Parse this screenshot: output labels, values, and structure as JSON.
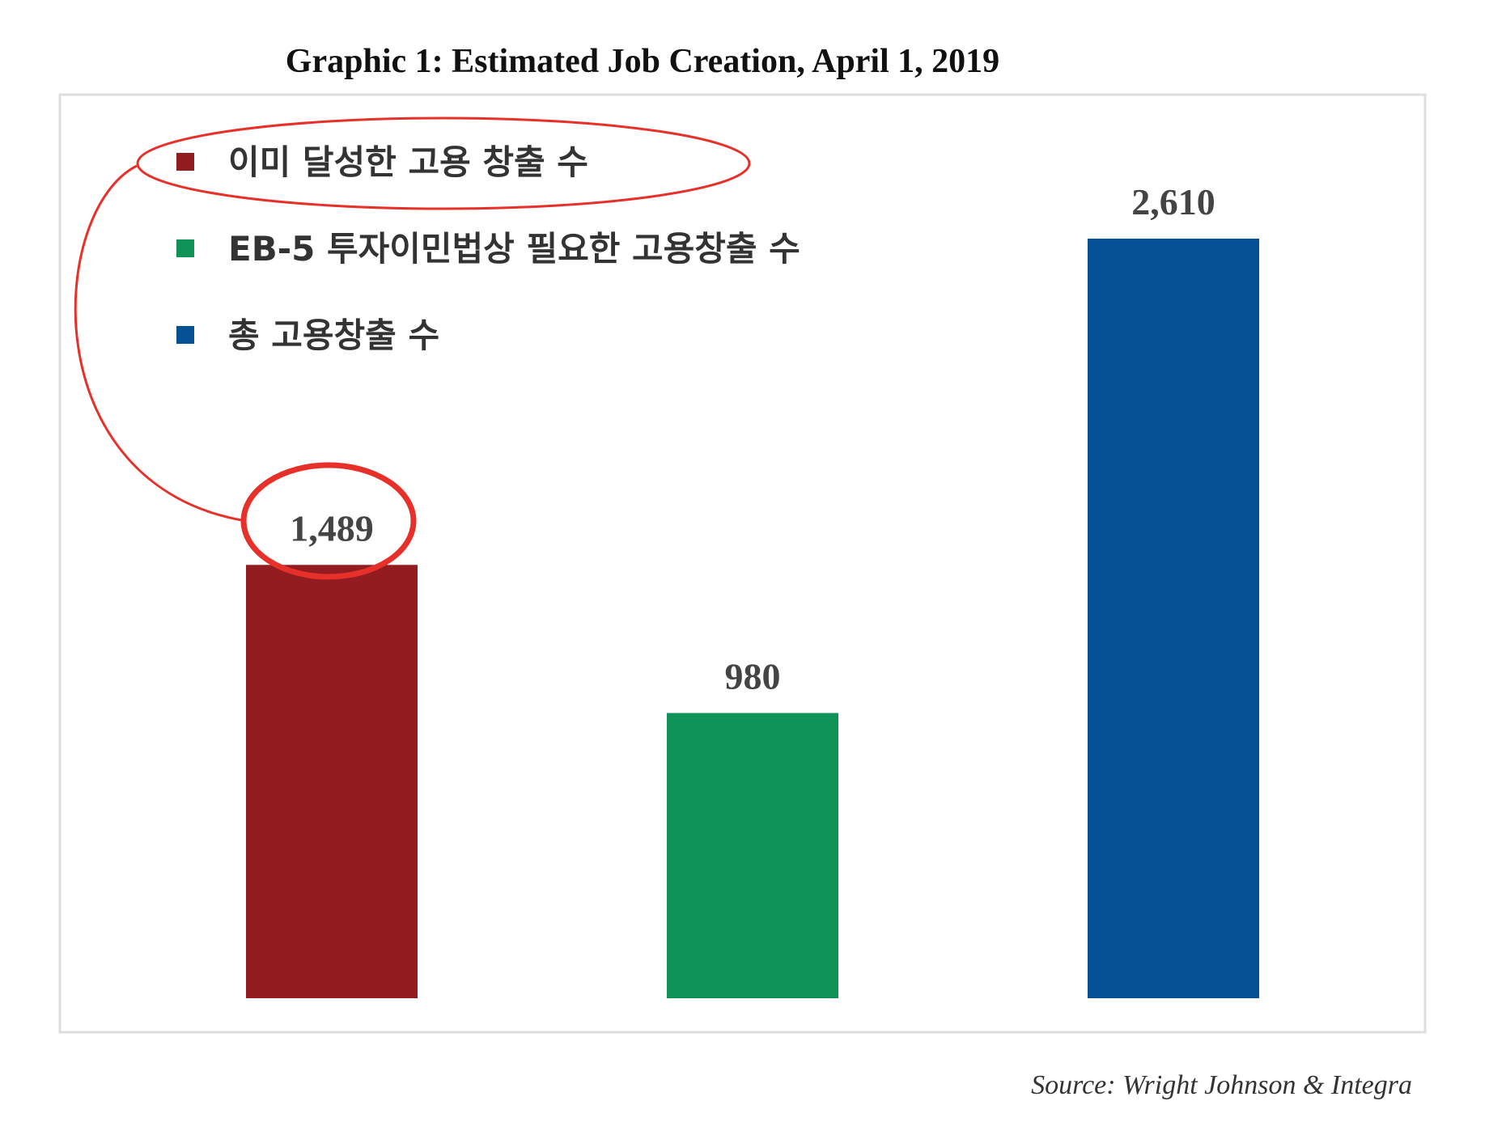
{
  "chart_data": {
    "type": "bar",
    "title": "Graphic 1: Estimated Job Creation, April 1, 2019",
    "categories": [
      null,
      null,
      null
    ],
    "series": [
      {
        "name": "이미 달성한 고용 창출 수",
        "color": "#921c20",
        "values": [
          1489,
          null,
          null
        ],
        "value_labels": [
          "1,489",
          null,
          null
        ]
      },
      {
        "name": "EB-5 투자이민법상 필요한 고용창출 수",
        "color": "#0e9256",
        "values": [
          null,
          980,
          null
        ],
        "value_labels": [
          null,
          "980",
          null
        ]
      },
      {
        "name": "총 고용창출 수",
        "color": "#045294",
        "values": [
          null,
          null,
          2610
        ],
        "value_labels": [
          null,
          null,
          "2,610"
        ]
      }
    ],
    "source": "Source: Wright Johnson & Integra"
  }
}
